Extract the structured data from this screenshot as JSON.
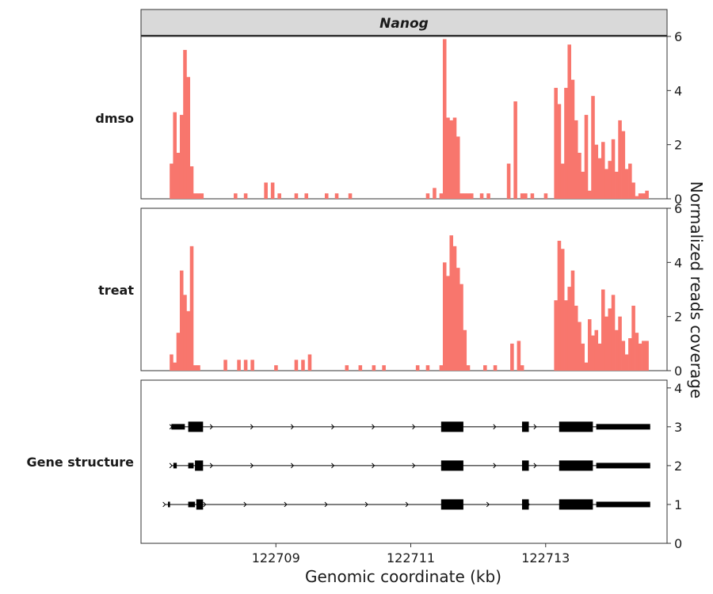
{
  "strip_title": "Nanog",
  "y_axis_title": "Normalized reads coverage",
  "x_axis_title": "Genomic coordinate (kb)",
  "colors": {
    "coverage_fill": "#F8766D",
    "strip_bg": "#D9D9D9",
    "gene": "#000000"
  },
  "chart_data": {
    "type": "bar",
    "x": {
      "label": "Genomic coordinate (kb)",
      "range": [
        122707.0,
        122714.8
      ],
      "ticks": [
        122709,
        122711,
        122713
      ],
      "tick_labels": [
        "122709",
        "122711",
        "122713"
      ]
    },
    "panels": [
      {
        "label": "dmso",
        "ylim": [
          0,
          6
        ],
        "yticks": [
          0,
          2,
          4,
          6
        ],
        "tick_labels": [
          "0",
          "2",
          "4",
          "6"
        ],
        "x": [
          122707.45,
          122707.5,
          122707.55,
          122707.6,
          122707.65,
          122707.7,
          122707.75,
          122707.8,
          122707.85,
          122707.9,
          122708.4,
          122708.55,
          122708.85,
          122708.95,
          122709.05,
          122709.3,
          122709.45,
          122709.75,
          122709.9,
          122710.1,
          122711.25,
          122711.35,
          122711.45,
          122711.5,
          122711.55,
          122711.6,
          122711.65,
          122711.7,
          122711.75,
          122711.8,
          122711.85,
          122711.9,
          122712.05,
          122712.15,
          122712.45,
          122712.55,
          122712.65,
          122712.7,
          122712.8,
          122713.0,
          122713.15,
          122713.2,
          122713.25,
          122713.3,
          122713.35,
          122713.4,
          122713.45,
          122713.5,
          122713.55,
          122713.6,
          122713.65,
          122713.7,
          122713.75,
          122713.8,
          122713.85,
          122713.9,
          122713.95,
          122714.0,
          122714.05,
          122714.1,
          122714.15,
          122714.2,
          122714.25,
          122714.3,
          122714.35,
          122714.4,
          122714.45,
          122714.5
        ],
        "values": [
          1.3,
          3.2,
          1.7,
          3.1,
          5.5,
          4.5,
          1.2,
          0.2,
          0.2,
          0.2,
          0.2,
          0.2,
          0.6,
          0.6,
          0.2,
          0.2,
          0.2,
          0.2,
          0.2,
          0.2,
          0.2,
          0.4,
          0.2,
          5.9,
          3.0,
          2.9,
          3.0,
          2.3,
          0.2,
          0.2,
          0.2,
          0.2,
          0.2,
          0.2,
          1.3,
          3.6,
          0.2,
          0.2,
          0.2,
          0.2,
          4.1,
          3.5,
          1.3,
          4.1,
          5.7,
          4.4,
          2.9,
          1.7,
          1.0,
          3.1,
          0.3,
          3.8,
          2.0,
          1.5,
          2.1,
          1.1,
          1.4,
          2.2,
          1.0,
          2.9,
          2.5,
          1.1,
          1.3,
          0.6,
          0.1,
          0.2,
          0.2,
          0.3
        ]
      },
      {
        "label": "treat",
        "ylim": [
          0,
          6
        ],
        "yticks": [
          0,
          2,
          4,
          6
        ],
        "tick_labels": [
          "0",
          "2",
          "4",
          "6"
        ],
        "x": [
          122707.45,
          122707.5,
          122707.55,
          122707.6,
          122707.65,
          122707.7,
          122707.75,
          122707.8,
          122707.85,
          122708.25,
          122708.45,
          122708.55,
          122708.65,
          122709.0,
          122709.3,
          122709.4,
          122709.5,
          122710.05,
          122710.25,
          122710.45,
          122710.6,
          122711.1,
          122711.25,
          122711.45,
          122711.5,
          122711.55,
          122711.6,
          122711.65,
          122711.7,
          122711.75,
          122711.8,
          122711.85,
          122712.1,
          122712.25,
          122712.5,
          122712.6,
          122712.65,
          122713.15,
          122713.2,
          122713.25,
          122713.3,
          122713.35,
          122713.4,
          122713.45,
          122713.5,
          122713.55,
          122713.6,
          122713.65,
          122713.7,
          122713.75,
          122713.8,
          122713.85,
          122713.9,
          122713.95,
          122714.0,
          122714.05,
          122714.1,
          122714.15,
          122714.2,
          122714.25,
          122714.3,
          122714.35,
          122714.4,
          122714.45,
          122714.5
        ],
        "values": [
          0.6,
          0.3,
          1.4,
          3.7,
          2.8,
          2.2,
          4.6,
          0.2,
          0.2,
          0.4,
          0.4,
          0.4,
          0.4,
          0.2,
          0.4,
          0.4,
          0.6,
          0.2,
          0.2,
          0.2,
          0.2,
          0.2,
          0.2,
          0.2,
          4.0,
          3.5,
          5.0,
          4.6,
          3.8,
          3.2,
          1.5,
          0.2,
          0.2,
          0.2,
          1.0,
          1.1,
          0.2,
          2.6,
          4.8,
          4.5,
          2.6,
          3.1,
          3.7,
          2.4,
          1.8,
          1.0,
          0.3,
          1.9,
          1.3,
          1.5,
          1.0,
          3.0,
          2.0,
          2.3,
          2.8,
          1.5,
          2.0,
          1.1,
          0.6,
          1.2,
          2.4,
          1.4,
          1.0,
          1.1,
          1.1
        ]
      }
    ],
    "gene_structure": {
      "label": "Gene structure",
      "ylim": [
        0,
        4.2
      ],
      "yticks": [
        0,
        1,
        2,
        3,
        4
      ],
      "tick_labels": [
        "0",
        "1",
        "2",
        "3",
        "4"
      ],
      "transcripts": [
        {
          "y": 3,
          "start": 122707.45,
          "end": 122714.55,
          "utr": [
            [
              122707.45,
              122707.65
            ],
            [
              122713.75,
              122714.55
            ]
          ],
          "cds": [
            [
              122707.7,
              122707.92
            ],
            [
              122711.45,
              122711.78
            ],
            [
              122712.65,
              122712.75
            ],
            [
              122713.2,
              122713.7
            ]
          ]
        },
        {
          "y": 2,
          "start": 122707.45,
          "end": 122714.55,
          "utr": [
            [
              122707.48,
              122707.53
            ],
            [
              122707.7,
              122707.78
            ],
            [
              122713.75,
              122714.55
            ]
          ],
          "cds": [
            [
              122707.8,
              122707.92
            ],
            [
              122711.45,
              122711.78
            ],
            [
              122712.65,
              122712.75
            ],
            [
              122713.2,
              122713.7
            ]
          ]
        },
        {
          "y": 1,
          "start": 122707.35,
          "end": 122714.55,
          "utr": [
            [
              122707.4,
              122707.43
            ],
            [
              122707.7,
              122707.8
            ],
            [
              122713.75,
              122714.55
            ]
          ],
          "cds": [
            [
              122707.82,
              122707.92
            ],
            [
              122711.45,
              122711.78
            ],
            [
              122712.65,
              122712.75
            ],
            [
              122713.2,
              122713.7
            ]
          ]
        }
      ]
    }
  }
}
